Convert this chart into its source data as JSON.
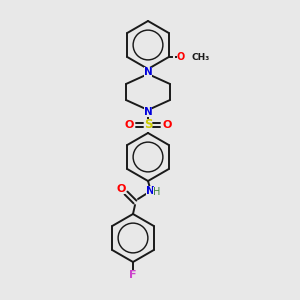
{
  "background_color": "#e8e8e8",
  "atom_colors": {
    "N": "#0000dd",
    "O": "#ff0000",
    "S": "#cccc00",
    "F": "#cc44cc",
    "H": "#408040"
  },
  "bond_color": "#1a1a1a",
  "bond_width": 1.4
}
